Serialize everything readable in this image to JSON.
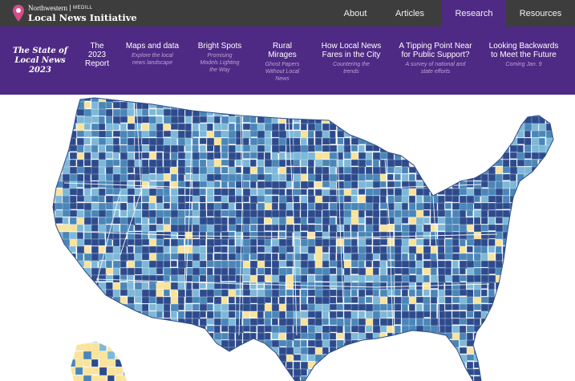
{
  "logo": {
    "university": "Northwestern",
    "school": "MEDILL",
    "name": "Local News Initiative"
  },
  "nav": {
    "items": [
      {
        "label": "About"
      },
      {
        "label": "Articles"
      },
      {
        "label": "Research",
        "active": true
      },
      {
        "label": "Resources"
      }
    ]
  },
  "subnav": {
    "brand": [
      "The State of",
      "Local News",
      "2023"
    ],
    "items": [
      {
        "title": [
          "The",
          "2023",
          "Report"
        ],
        "desc": []
      },
      {
        "title": [
          "Maps and data"
        ],
        "desc": [
          "Explore the local",
          "news landscape"
        ]
      },
      {
        "title": [
          "Bright Spots"
        ],
        "desc": [
          "Promising",
          "Models Lighting",
          "the Way"
        ]
      },
      {
        "title": [
          "Rural",
          "Mirages"
        ],
        "desc": [
          "Ghost Papers",
          "Without Local",
          "News"
        ]
      },
      {
        "title": [
          "How Local News",
          "Fares in the City"
        ],
        "desc": [
          "Countering the",
          "trends"
        ]
      },
      {
        "title": [
          "A Tipping Point Near",
          "for Public Support?"
        ],
        "desc": [
          "A survey of national and",
          "state efforts"
        ]
      },
      {
        "title": [
          "Looking Backwards",
          "to Meet the Future"
        ],
        "desc": [
          "Coming Jan. 9"
        ]
      }
    ]
  },
  "colors": {
    "topbar": "#3d3d3d",
    "purple": "#4e2a84",
    "map_dark": "#2d4b8c",
    "map_mid": "#4a86b8",
    "map_light": "#7db8d8",
    "map_yellow": "#fae39a",
    "map_border": "#e8eef5"
  },
  "map": {
    "name": "us-county-news-map"
  }
}
